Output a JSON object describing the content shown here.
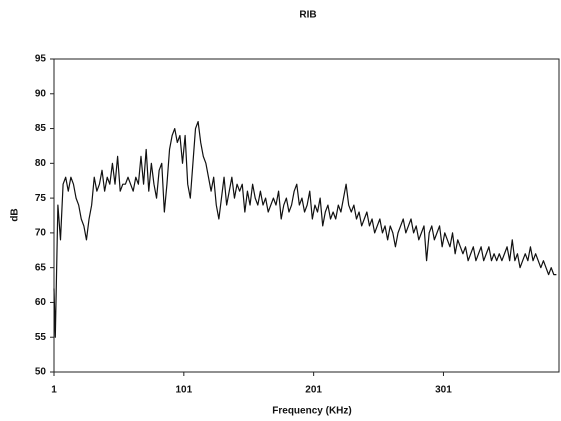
{
  "chart_data": {
    "type": "line",
    "title": "RIB",
    "x_label": "Frequency (KHz)",
    "y_label": "dB",
    "xlim": [
      1,
      390
    ],
    "xticks": [
      1,
      101,
      201,
      301
    ],
    "ylim": [
      50,
      95
    ],
    "yticks": [
      50,
      55,
      60,
      65,
      70,
      75,
      80,
      85,
      90,
      95
    ],
    "x": [
      1,
      2,
      4,
      6,
      8,
      10,
      12,
      14,
      16,
      18,
      20,
      22,
      24,
      26,
      28,
      30,
      32,
      34,
      36,
      38,
      40,
      42,
      44,
      46,
      48,
      50,
      52,
      54,
      56,
      58,
      60,
      62,
      64,
      66,
      68,
      70,
      72,
      74,
      76,
      78,
      80,
      82,
      84,
      86,
      88,
      90,
      92,
      94,
      96,
      98,
      100,
      102,
      104,
      106,
      108,
      110,
      112,
      114,
      116,
      118,
      120,
      122,
      124,
      126,
      128,
      130,
      132,
      134,
      136,
      138,
      140,
      142,
      144,
      146,
      148,
      150,
      152,
      154,
      156,
      158,
      160,
      162,
      164,
      166,
      168,
      170,
      172,
      174,
      176,
      178,
      180,
      182,
      184,
      186,
      188,
      190,
      192,
      194,
      196,
      198,
      200,
      202,
      204,
      206,
      208,
      210,
      212,
      214,
      216,
      218,
      220,
      222,
      224,
      226,
      228,
      230,
      232,
      234,
      236,
      238,
      240,
      242,
      244,
      246,
      248,
      250,
      252,
      254,
      256,
      258,
      260,
      262,
      264,
      266,
      268,
      270,
      272,
      274,
      276,
      278,
      280,
      282,
      284,
      286,
      288,
      290,
      292,
      294,
      296,
      298,
      300,
      302,
      304,
      306,
      308,
      310,
      312,
      314,
      316,
      318,
      320,
      322,
      324,
      326,
      328,
      330,
      332,
      334,
      336,
      338,
      340,
      342,
      344,
      346,
      348,
      350,
      352,
      354,
      356,
      358,
      360,
      362,
      364,
      366,
      368,
      370,
      372,
      374,
      376,
      378,
      380,
      382,
      384,
      386,
      388
    ],
    "series": [
      {
        "name": "RIB",
        "color": "#111111",
        "values": [
          62,
          55,
          74,
          69,
          77,
          78,
          76,
          78,
          77,
          75,
          74,
          72,
          71,
          69,
          72,
          74,
          78,
          76,
          77,
          79,
          76,
          78,
          77,
          80,
          77,
          81,
          76,
          77,
          77,
          78,
          77,
          76,
          78,
          77,
          81,
          77,
          82,
          76,
          80,
          77,
          75,
          79,
          80,
          73,
          77,
          82,
          84,
          85,
          83,
          84,
          80,
          84,
          77,
          75,
          80,
          85,
          86,
          83,
          81,
          80,
          78,
          76,
          78,
          74,
          72,
          75,
          78,
          74,
          76,
          78,
          75,
          77,
          76,
          77,
          73,
          76,
          74,
          77,
          75,
          74,
          76,
          74,
          75,
          73,
          74,
          75,
          74,
          76,
          72,
          74,
          75,
          73,
          74,
          76,
          77,
          74,
          75,
          73,
          74,
          76,
          72,
          74,
          73,
          75,
          71,
          73,
          74,
          72,
          73,
          72,
          74,
          73,
          75,
          77,
          74,
          73,
          74,
          72,
          73,
          71,
          72,
          73,
          71,
          72,
          70,
          71,
          72,
          70,
          71,
          69,
          71,
          70,
          68,
          70,
          71,
          72,
          70,
          71,
          72,
          70,
          71,
          69,
          70,
          71,
          66,
          70,
          71,
          69,
          70,
          71,
          68,
          70,
          69,
          68,
          70,
          67,
          69,
          68,
          67,
          68,
          66,
          67,
          68,
          66,
          67,
          68,
          66,
          67,
          68,
          66,
          67,
          66,
          67,
          66,
          67,
          68,
          66,
          69,
          66,
          67,
          65,
          66,
          67,
          66,
          68,
          66,
          67,
          66,
          65,
          66,
          65,
          64,
          65,
          64,
          64
        ]
      }
    ]
  }
}
